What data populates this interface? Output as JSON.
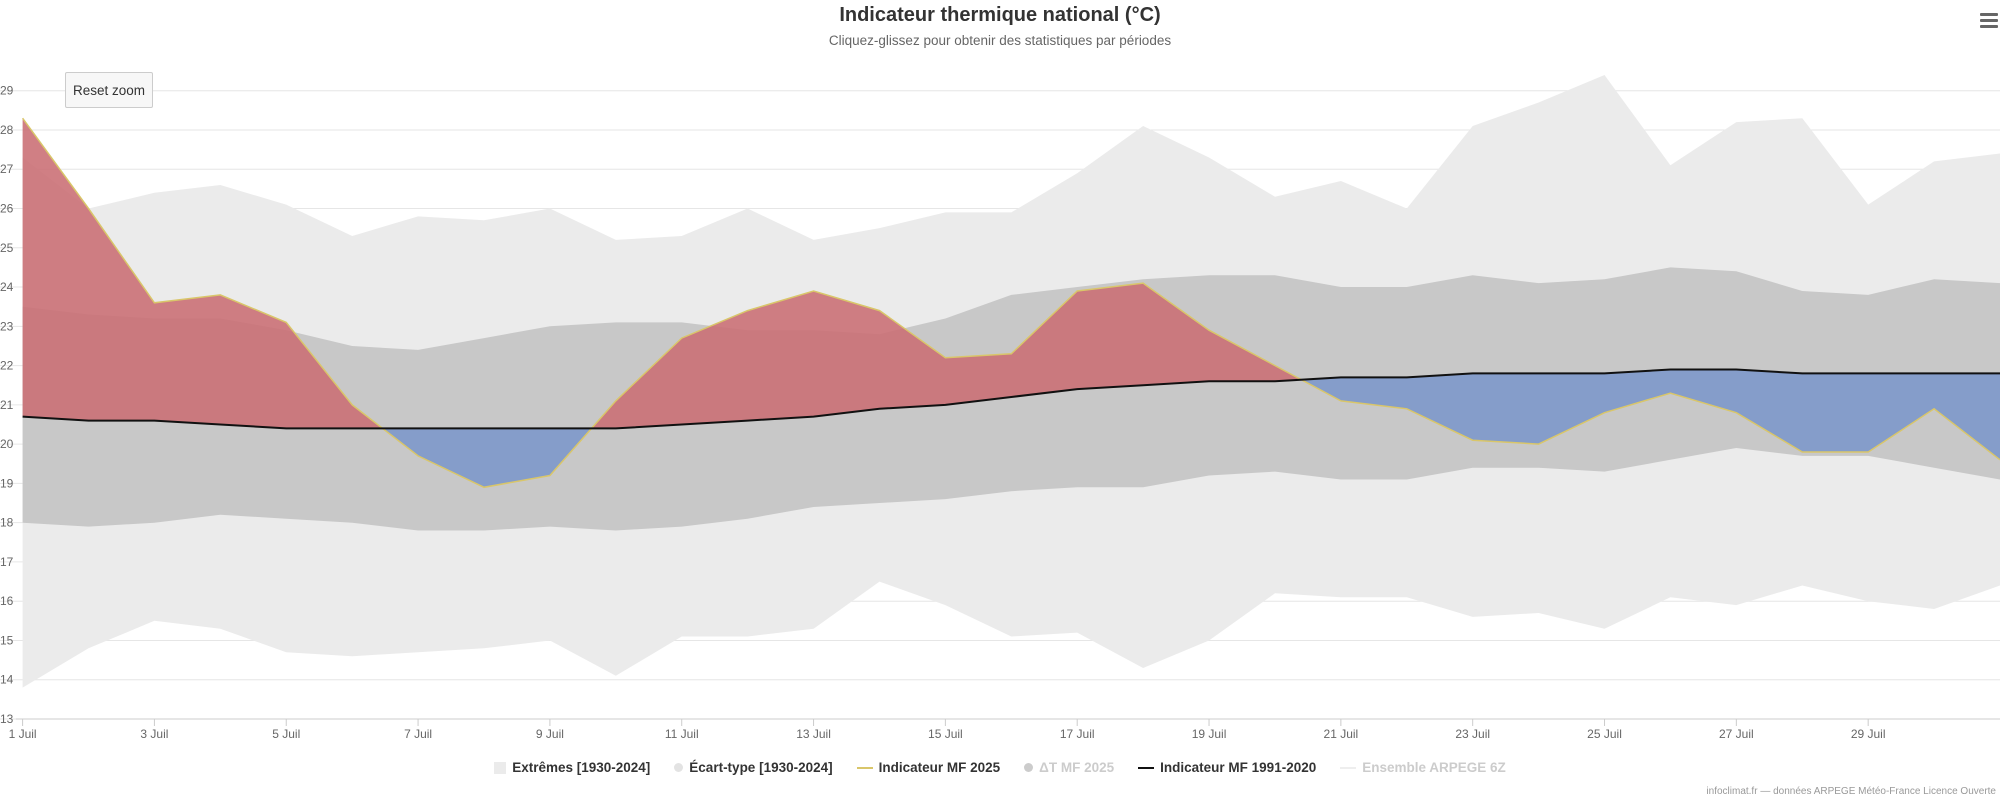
{
  "title": "Indicateur thermique national (°C)",
  "subtitle": "Cliquez-glissez pour obtenir des statistiques par périodes",
  "reset_zoom_label": "Reset zoom",
  "credits": "infoclimat.fr — données ARPEGE Météo-France Licence Ouverte",
  "colors": {
    "extremes": "#ebebeb",
    "stddev": "#c8c8c8",
    "warm_anomaly": "#c96d73",
    "cold_anomaly": "#7b96c9",
    "mf2025_line": "#d9c66a",
    "normal_line": "#111111",
    "grid": "#e6e6e6"
  },
  "legend": [
    {
      "key": "extremes",
      "label": "Extrêmes [1930-2024]",
      "symbol": "area",
      "color": "#ebebeb",
      "hidden": false
    },
    {
      "key": "stddev",
      "label": "Écart-type [1930-2024]",
      "symbol": "dot",
      "color": "#e3e3e3",
      "hidden": false
    },
    {
      "key": "mf2025",
      "label": "Indicateur MF 2025",
      "symbol": "line",
      "color": "#d9c66a",
      "hidden": false
    },
    {
      "key": "delta",
      "label": "ΔT MF 2025",
      "symbol": "dot",
      "color": "#cccccc",
      "hidden": true
    },
    {
      "key": "normal",
      "label": "Indicateur MF 1991-2020",
      "symbol": "line",
      "color": "#111111",
      "hidden": false
    },
    {
      "key": "arpege",
      "label": "Ensemble ARPEGE 6Z",
      "symbol": "line",
      "color": "#eeeeee",
      "hidden": true
    }
  ],
  "chart_data": {
    "type": "area",
    "title": "Indicateur thermique national (°C)",
    "xlabel": "",
    "ylabel": "°C",
    "ylim": [
      13,
      29.4
    ],
    "xlim": [
      0.9,
      31
    ],
    "x_ticks": [
      1,
      3,
      5,
      7,
      9,
      11,
      13,
      15,
      17,
      19,
      21,
      23,
      25,
      27,
      29
    ],
    "x_tick_labels": [
      "1 Juil",
      "3 Juil",
      "5 Juil",
      "7 Juil",
      "9 Juil",
      "11 Juil",
      "13 Juil",
      "15 Juil",
      "17 Juil",
      "19 Juil",
      "21 Juil",
      "23 Juil",
      "25 Juil",
      "27 Juil",
      "29 Juil"
    ],
    "y_ticks": [
      13,
      14,
      15,
      16,
      17,
      18,
      19,
      20,
      21,
      22,
      23,
      24,
      25,
      26,
      27,
      28,
      29
    ],
    "x": [
      1,
      2,
      3,
      4,
      5,
      6,
      7,
      8,
      9,
      10,
      11,
      12,
      13,
      14,
      15,
      16,
      17,
      18,
      19,
      20,
      21,
      22,
      23,
      24,
      25,
      26,
      27,
      28,
      29,
      30,
      31
    ],
    "series": [
      {
        "name": "Extrêmes [1930-2024] max",
        "values": [
          27.3,
          26.0,
          26.4,
          26.6,
          26.1,
          25.3,
          25.8,
          25.7,
          26.0,
          25.2,
          25.3,
          26.0,
          25.2,
          25.5,
          25.9,
          25.9,
          26.9,
          28.1,
          27.3,
          26.3,
          26.7,
          26.0,
          28.1,
          28.7,
          29.4,
          27.1,
          28.2,
          28.3,
          26.1,
          27.2,
          27.4
        ]
      },
      {
        "name": "Extrêmes [1930-2024] min",
        "values": [
          13.8,
          14.8,
          15.5,
          15.3,
          14.7,
          14.6,
          14.7,
          14.8,
          15.0,
          14.1,
          15.1,
          15.1,
          15.3,
          16.5,
          15.9,
          15.1,
          15.2,
          14.3,
          15.0,
          16.2,
          16.1,
          16.1,
          15.6,
          15.7,
          15.3,
          16.1,
          15.9,
          16.4,
          16.0,
          15.8,
          16.4
        ]
      },
      {
        "name": "Écart-type [1930-2024] haut",
        "values": [
          23.5,
          23.3,
          23.2,
          23.2,
          22.9,
          22.5,
          22.4,
          22.7,
          23.0,
          23.1,
          23.1,
          22.9,
          22.9,
          22.8,
          23.2,
          23.8,
          24.0,
          24.2,
          24.3,
          24.3,
          24.0,
          24.0,
          24.3,
          24.1,
          24.2,
          24.5,
          24.4,
          23.9,
          23.8,
          24.2,
          24.1
        ]
      },
      {
        "name": "Écart-type [1930-2024] bas",
        "values": [
          18.0,
          17.9,
          18.0,
          18.2,
          18.1,
          18.0,
          17.8,
          17.8,
          17.9,
          17.8,
          17.9,
          18.1,
          18.4,
          18.5,
          18.6,
          18.8,
          18.9,
          18.9,
          19.2,
          19.3,
          19.1,
          19.1,
          19.4,
          19.4,
          19.3,
          19.6,
          19.9,
          19.7,
          19.7,
          19.4,
          19.1
        ]
      },
      {
        "name": "Indicateur MF 2025",
        "values": [
          28.3,
          26.0,
          23.6,
          23.8,
          23.1,
          21.0,
          19.7,
          18.9,
          19.2,
          21.1,
          22.7,
          23.4,
          23.9,
          23.4,
          22.2,
          22.3,
          23.9,
          24.1,
          22.9,
          22.0,
          21.1,
          20.9,
          20.1,
          20.0,
          20.8,
          21.3,
          20.8,
          19.8,
          19.8,
          20.9,
          19.6
        ]
      },
      {
        "name": "Indicateur MF 1991-2020",
        "values": [
          20.7,
          20.6,
          20.6,
          20.5,
          20.4,
          20.4,
          20.4,
          20.4,
          20.4,
          20.4,
          20.5,
          20.6,
          20.7,
          20.9,
          21.0,
          21.2,
          21.4,
          21.5,
          21.6,
          21.6,
          21.7,
          21.7,
          21.8,
          21.8,
          21.8,
          21.9,
          21.9,
          21.8,
          21.8,
          21.8,
          21.8
        ]
      }
    ]
  }
}
